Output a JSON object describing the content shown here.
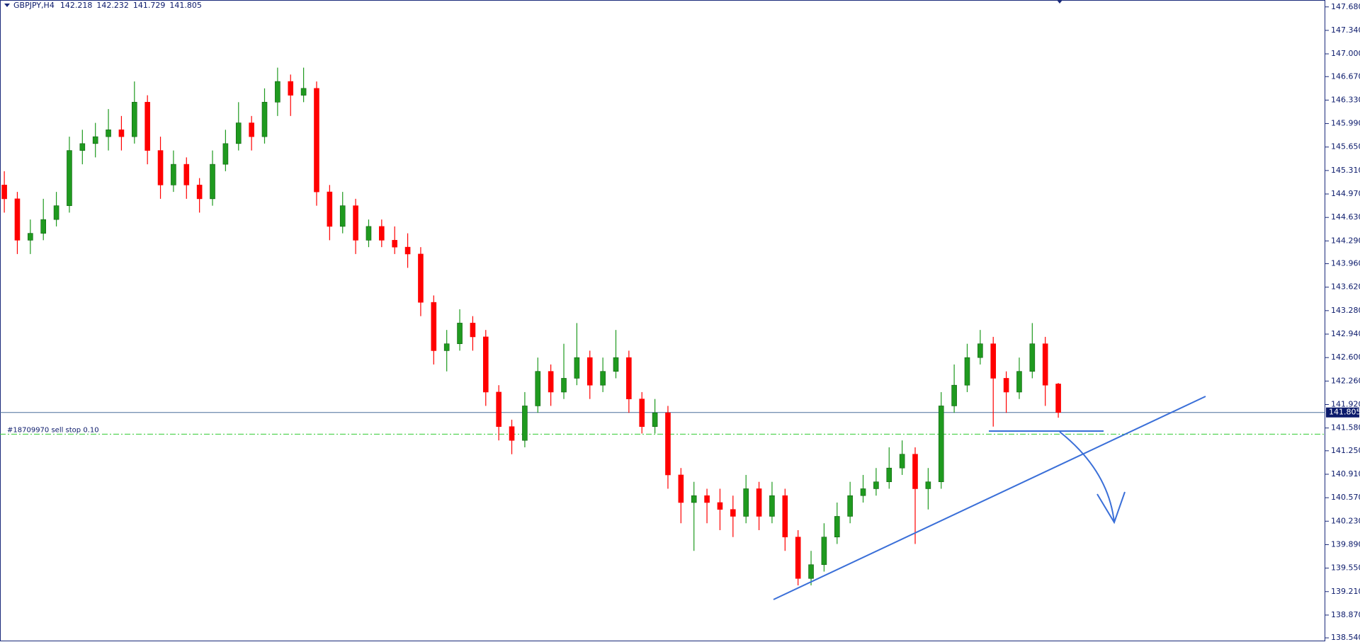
{
  "chart_data": {
    "type": "candlestick",
    "title": "GBPJPY,H4",
    "up_color": "#1f9a1f",
    "down_color": "#ff0000",
    "open": [
      145.1,
      144.9,
      144.3,
      144.4,
      144.6,
      144.8,
      145.6,
      145.7,
      145.8,
      145.9,
      145.8,
      146.3,
      145.6,
      145.1,
      145.4,
      145.1,
      144.9,
      145.4,
      145.7,
      146.0,
      145.8,
      146.3,
      146.6,
      146.4,
      146.5,
      145.0,
      144.5,
      144.8,
      144.3,
      144.5,
      144.3,
      144.2,
      144.1,
      143.4,
      142.7,
      142.8,
      143.1,
      142.9,
      142.1,
      141.6,
      141.4,
      141.9,
      142.4,
      142.1,
      142.3,
      142.6,
      142.2,
      142.4,
      142.6,
      142.0,
      141.6,
      141.8,
      140.9,
      140.5,
      140.6,
      140.5,
      140.4,
      140.3,
      140.7,
      140.3,
      140.6,
      140.0,
      139.4,
      139.6,
      140.0,
      140.3,
      140.6,
      140.7,
      140.8,
      141.0,
      141.2,
      140.7,
      140.8,
      141.9,
      142.2,
      142.6,
      142.8,
      142.3,
      142.1,
      142.4,
      142.8,
      142.218
    ],
    "high": [
      145.3,
      145.0,
      144.6,
      144.9,
      145.0,
      145.8,
      145.9,
      146.0,
      146.2,
      146.1,
      146.6,
      146.4,
      145.8,
      145.6,
      145.5,
      145.2,
      145.6,
      145.9,
      146.3,
      146.1,
      146.5,
      146.8,
      146.7,
      146.8,
      146.6,
      145.1,
      145.0,
      144.9,
      144.6,
      144.6,
      144.5,
      144.4,
      144.2,
      143.5,
      143.0,
      143.3,
      143.2,
      143.0,
      142.2,
      141.7,
      142.1,
      142.6,
      142.5,
      142.8,
      143.1,
      142.7,
      142.6,
      143.0,
      142.7,
      142.1,
      142.0,
      141.9,
      141.0,
      140.8,
      140.7,
      140.7,
      140.6,
      140.9,
      140.8,
      140.8,
      140.7,
      140.1,
      139.8,
      140.2,
      140.5,
      140.8,
      140.9,
      141.0,
      141.3,
      141.4,
      141.3,
      141.0,
      142.1,
      142.5,
      142.8,
      143.0,
      142.9,
      142.4,
      142.6,
      143.1,
      142.9,
      142.232
    ],
    "low": [
      144.7,
      144.1,
      144.1,
      144.3,
      144.5,
      144.7,
      145.4,
      145.5,
      145.6,
      145.6,
      145.7,
      145.4,
      144.9,
      145.0,
      144.9,
      144.7,
      144.8,
      145.3,
      145.6,
      145.6,
      145.7,
      146.1,
      146.1,
      146.3,
      144.8,
      144.3,
      144.4,
      144.1,
      144.2,
      144.2,
      144.1,
      143.9,
      143.2,
      142.5,
      142.4,
      142.7,
      142.7,
      141.9,
      141.4,
      141.2,
      141.3,
      141.8,
      141.9,
      142.0,
      142.2,
      142.0,
      142.1,
      142.3,
      141.8,
      141.5,
      141.5,
      140.7,
      140.2,
      139.8,
      140.2,
      140.1,
      140.0,
      140.2,
      140.1,
      140.2,
      139.8,
      139.3,
      139.3,
      139.5,
      139.9,
      140.2,
      140.5,
      140.6,
      140.7,
      140.9,
      139.9,
      140.4,
      140.7,
      141.8,
      142.1,
      142.5,
      141.6,
      141.8,
      142.0,
      142.3,
      141.9,
      141.729
    ],
    "close": [
      144.9,
      144.3,
      144.4,
      144.6,
      144.8,
      145.6,
      145.7,
      145.8,
      145.9,
      145.8,
      146.3,
      145.6,
      145.1,
      145.4,
      145.1,
      144.9,
      145.4,
      145.7,
      146.0,
      145.8,
      146.3,
      146.6,
      146.4,
      146.5,
      145.0,
      144.5,
      144.8,
      144.3,
      144.5,
      144.3,
      144.2,
      144.1,
      143.4,
      142.7,
      142.8,
      143.1,
      142.9,
      142.1,
      141.6,
      141.4,
      141.9,
      142.4,
      142.1,
      142.3,
      142.6,
      142.2,
      142.4,
      142.6,
      142.0,
      141.6,
      141.8,
      140.9,
      140.5,
      140.6,
      140.5,
      140.4,
      140.3,
      140.7,
      140.3,
      140.6,
      140.0,
      139.4,
      139.6,
      140.0,
      140.3,
      140.6,
      140.7,
      140.8,
      141.0,
      141.2,
      140.7,
      140.8,
      141.9,
      142.2,
      142.6,
      142.8,
      142.3,
      142.1,
      142.4,
      142.8,
      142.2,
      141.805
    ],
    "ylim": [
      138.49,
      147.78
    ],
    "yticks": [
      {
        "value": 147.68,
        "label": "147.680"
      },
      {
        "value": 147.34,
        "label": "147.340"
      },
      {
        "value": 147.0,
        "label": "147.000"
      },
      {
        "value": 146.67,
        "label": "146.670"
      },
      {
        "value": 146.33,
        "label": "146.330"
      },
      {
        "value": 145.99,
        "label": "145.990"
      },
      {
        "value": 145.65,
        "label": "145.650"
      },
      {
        "value": 145.31,
        "label": "145.310"
      },
      {
        "value": 144.97,
        "label": "144.970"
      },
      {
        "value": 144.63,
        "label": "144.630"
      },
      {
        "value": 144.29,
        "label": "144.290"
      },
      {
        "value": 143.96,
        "label": "143.960"
      },
      {
        "value": 143.62,
        "label": "143.620"
      },
      {
        "value": 143.28,
        "label": "143.280"
      },
      {
        "value": 142.94,
        "label": "142.940"
      },
      {
        "value": 142.6,
        "label": "142.600"
      },
      {
        "value": 142.26,
        "label": "142.260"
      },
      {
        "value": 141.92,
        "label": "141.920"
      },
      {
        "value": 141.58,
        "label": "141.580"
      },
      {
        "value": 141.25,
        "label": "141.250"
      },
      {
        "value": 140.91,
        "label": "140.910"
      },
      {
        "value": 140.57,
        "label": "140.570"
      },
      {
        "value": 140.23,
        "label": "140.230"
      },
      {
        "value": 139.89,
        "label": "139.890"
      },
      {
        "value": 139.55,
        "label": "139.550"
      },
      {
        "value": 139.21,
        "label": "139.210"
      },
      {
        "value": 138.87,
        "label": "138.870"
      },
      {
        "value": 138.54,
        "label": "138.540"
      }
    ],
    "order": {
      "label": "#18709970 sell stop 0.10",
      "price": 141.49,
      "color": "#33cc33"
    },
    "bid_color": "#4a6f9a"
  }
}
